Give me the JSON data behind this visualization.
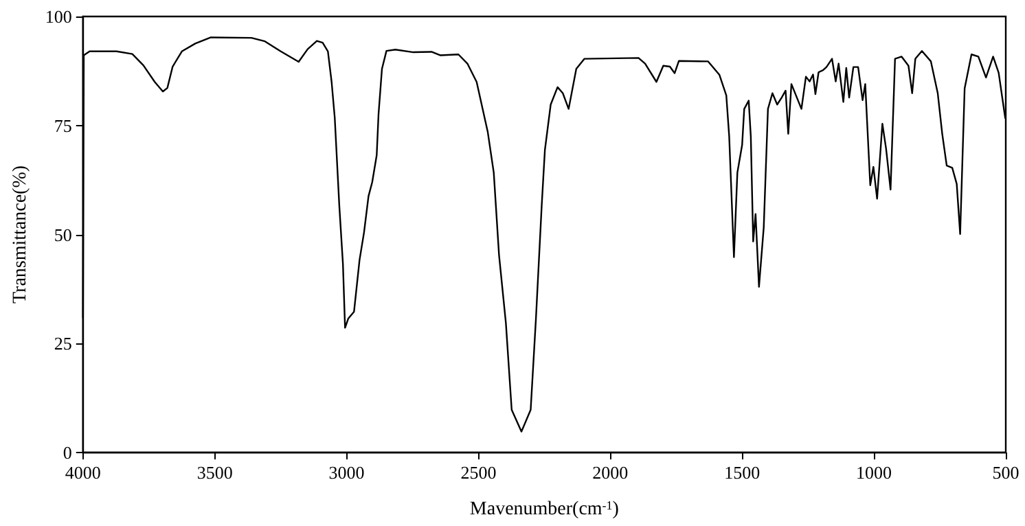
{
  "chart_data": {
    "type": "line",
    "xlabel": "Mavenumber(cm$^{-1}$)",
    "ylabel": "Transmittance(%)",
    "xlim": [
      4000,
      500
    ],
    "xticks": [
      4000,
      3500,
      3000,
      2500,
      2000,
      1500,
      1000,
      500
    ],
    "ylim": [
      0,
      100
    ],
    "yticks": [
      0,
      25,
      50,
      75,
      100
    ],
    "marker": "none",
    "line_style": "solid",
    "x": [
      4000,
      3997,
      3975,
      3873,
      3813,
      3771,
      3728,
      3697,
      3680,
      3660,
      3625,
      3574,
      3515,
      3361,
      3310,
      3250,
      3182,
      3148,
      3113,
      3091,
      3071,
      3057,
      3045,
      3028,
      3014,
      3006,
      2994,
      2972,
      2951,
      2934,
      2917,
      2903,
      2886,
      2879,
      2866,
      2849,
      2815,
      2747,
      2678,
      2644,
      2576,
      2542,
      2507,
      2465,
      2442,
      2422,
      2396,
      2374,
      2337,
      2302,
      2282,
      2260,
      2248,
      2226,
      2200,
      2180,
      2158,
      2129,
      2098,
      1893,
      1868,
      1825,
      1799,
      1774,
      1756,
      1740,
      1629,
      1586,
      1560,
      1549,
      1531,
      1518,
      1500,
      1492,
      1475,
      1467,
      1458,
      1449,
      1436,
      1418,
      1402,
      1385,
      1367,
      1350,
      1335,
      1325,
      1313,
      1275,
      1258,
      1244,
      1231,
      1222,
      1210,
      1193,
      1180,
      1159,
      1145,
      1134,
      1116,
      1105,
      1094,
      1078,
      1060,
      1043,
      1033,
      1014,
      1002,
      988,
      968,
      954,
      937,
      920,
      895,
      869,
      855,
      843,
      818,
      784,
      758,
      741,
      724,
      703,
      686,
      673,
      656,
      630,
      604,
      575,
      548,
      527,
      502
    ],
    "series": [
      {
        "color": "#000000",
        "values": [
          31,
          91.1,
          92,
          92,
          91.4,
          88.8,
          85.0,
          82.8,
          83.6,
          88.5,
          92.0,
          93.8,
          95.2,
          95.1,
          94.3,
          92.0,
          89.6,
          92.5,
          94.4,
          94.0,
          92.0,
          85.0,
          76.7,
          56.8,
          43.2,
          28.6,
          30.7,
          32.3,
          44.2,
          50.5,
          58.8,
          62.0,
          68.2,
          77.6,
          88.0,
          92.1,
          92.4,
          91.8,
          91.9,
          91.1,
          91.3,
          89.2,
          85.0,
          73.6,
          64.2,
          45.3,
          29.7,
          9.8,
          4.8,
          9.8,
          30.7,
          56.8,
          69.4,
          79.8,
          83.8,
          82.4,
          78.8,
          88.0,
          90.3,
          90.5,
          89.2,
          85.0,
          88.7,
          88.5,
          87.0,
          89.8,
          89.7,
          86.6,
          81.9,
          72.5,
          44.8,
          64.2,
          70.5,
          78.8,
          80.7,
          72.5,
          48.4,
          54.7,
          38.0,
          51.6,
          78.8,
          82.4,
          79.8,
          81.4,
          83.0,
          73.1,
          84.5,
          78.8,
          86.2,
          85.1,
          86.7,
          82.2,
          87.2,
          87.7,
          88.4,
          90.3,
          85.1,
          89.2,
          80.4,
          88.2,
          81.4,
          88.4,
          88.4,
          80.8,
          84.5,
          61.3,
          65.5,
          58.2,
          75.4,
          69.7,
          60.3,
          90.3,
          90.8,
          88.7,
          82.4,
          90.3,
          92.1,
          89.7,
          82.4,
          73.1,
          65.8,
          65.3,
          61.6,
          50.1,
          83.5,
          91.3,
          90.8,
          86.0,
          90.8,
          87.1,
          76.7
        ]
      }
    ]
  }
}
